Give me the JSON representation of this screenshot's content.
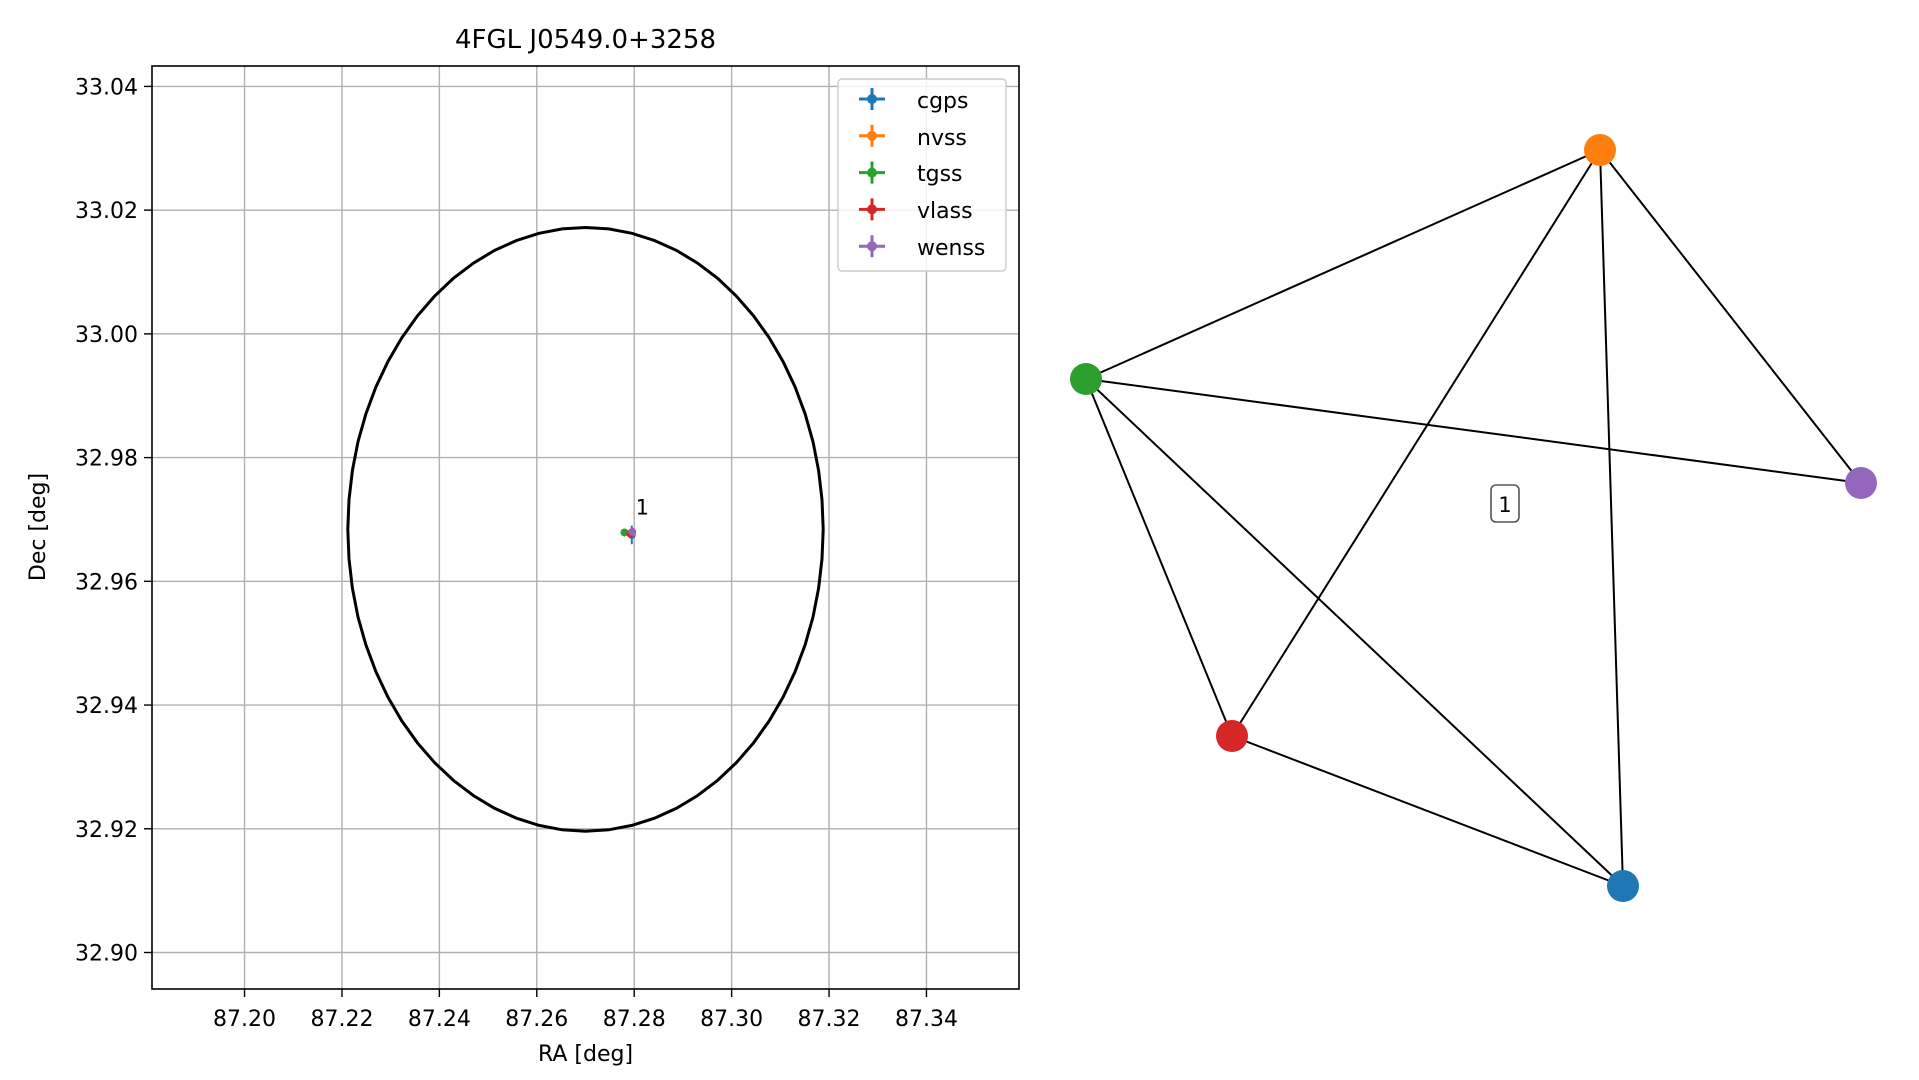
{
  "chart_data": [
    {
      "type": "scatter",
      "title": "4FGL J0549.0+3258",
      "xlabel": "RA [deg]",
      "ylabel": "Dec [deg]",
      "xlim": [
        87.181,
        87.359
      ],
      "ylim": [
        32.8941,
        33.0433
      ],
      "xticks": [
        87.2,
        87.22,
        87.24,
        87.26,
        87.28,
        87.3,
        87.32,
        87.34
      ],
      "xtick_labels": [
        "87.20",
        "87.22",
        "87.24",
        "87.26",
        "87.28",
        "87.30",
        "87.32",
        "87.34"
      ],
      "yticks": [
        32.9,
        32.92,
        32.94,
        32.96,
        32.98,
        33.0,
        33.02,
        33.04
      ],
      "ytick_labels": [
        "32.90",
        "32.92",
        "32.94",
        "32.96",
        "32.98",
        "33.00",
        "33.02",
        "33.04"
      ],
      "grid": true,
      "legend_position": "top-right",
      "series": [
        {
          "name": "cgps",
          "color": "#1f77b4",
          "x": 87.2795,
          "y": 32.9675,
          "xerr": 0.0005,
          "yerr": 0.0015
        },
        {
          "name": "nvss",
          "color": "#ff7f0e",
          "x": 87.2795,
          "y": 32.9678,
          "xerr": 0.0004,
          "yerr": 0.0005
        },
        {
          "name": "tgss",
          "color": "#2ca02c",
          "x": 87.278,
          "y": 32.9679,
          "xerr": 0.0004,
          "yerr": 0.0004
        },
        {
          "name": "vlass",
          "color": "#d62728",
          "x": 87.2792,
          "y": 32.9677,
          "xerr": 0.0002,
          "yerr": 0.0002
        },
        {
          "name": "wenss",
          "color": "#9467bd",
          "x": 87.2796,
          "y": 32.968,
          "xerr": 0.0005,
          "yerr": 0.0005
        }
      ],
      "circle": {
        "center": [
          87.27,
          32.9684
        ],
        "radius": 0.0488
      },
      "annotations": [
        {
          "text": "1",
          "x": 87.2803,
          "y": 32.9708
        }
      ]
    },
    {
      "type": "network",
      "nodes": [
        {
          "name": "cgps",
          "color": "#1f77b4"
        },
        {
          "name": "nvss",
          "color": "#ff7f0e"
        },
        {
          "name": "tgss",
          "color": "#2ca02c"
        },
        {
          "name": "vlass",
          "color": "#d62728"
        },
        {
          "name": "wenss",
          "color": "#9467bd"
        }
      ],
      "edges": [
        [
          "tgss",
          "nvss"
        ],
        [
          "tgss",
          "wenss"
        ],
        [
          "tgss",
          "vlass"
        ],
        [
          "tgss",
          "cgps"
        ],
        [
          "nvss",
          "vlass"
        ],
        [
          "nvss",
          "cgps"
        ],
        [
          "nvss",
          "wenss"
        ],
        [
          "vlass",
          "cgps"
        ]
      ],
      "label": "1"
    }
  ]
}
